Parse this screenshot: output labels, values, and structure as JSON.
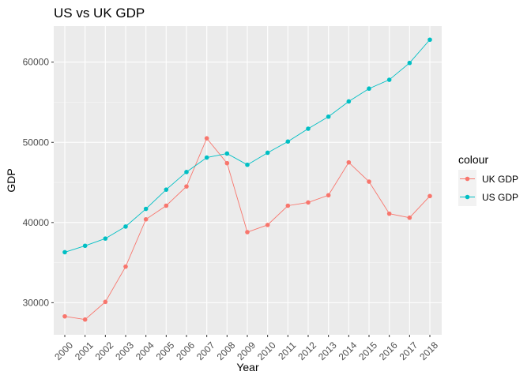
{
  "chart_data": {
    "type": "line",
    "title": "US vs UK GDP",
    "xlabel": "Year",
    "ylabel": "GDP",
    "x": [
      "2000",
      "2001",
      "2002",
      "2003",
      "2004",
      "2005",
      "2006",
      "2007",
      "2008",
      "2009",
      "2010",
      "2011",
      "2012",
      "2013",
      "2014",
      "2015",
      "2016",
      "2017",
      "2018"
    ],
    "series": [
      {
        "name": "UK GDP",
        "color": "#F8766D",
        "values": [
          28300,
          27900,
          30100,
          34500,
          40400,
          42100,
          44500,
          50500,
          47400,
          38800,
          39700,
          42100,
          42500,
          43400,
          47500,
          45100,
          41100,
          40600,
          43300
        ]
      },
      {
        "name": "US GDP",
        "color": "#00BFC4",
        "values": [
          36300,
          37100,
          38000,
          39500,
          41700,
          44100,
          46300,
          48100,
          48600,
          47200,
          48700,
          50100,
          51700,
          53200,
          55100,
          56700,
          57800,
          59900,
          62800
        ]
      }
    ],
    "yticks": [
      30000,
      40000,
      50000,
      60000
    ],
    "ylim": [
      26000,
      64500
    ],
    "grid": true,
    "legend": {
      "title": "colour",
      "position": "right"
    }
  }
}
